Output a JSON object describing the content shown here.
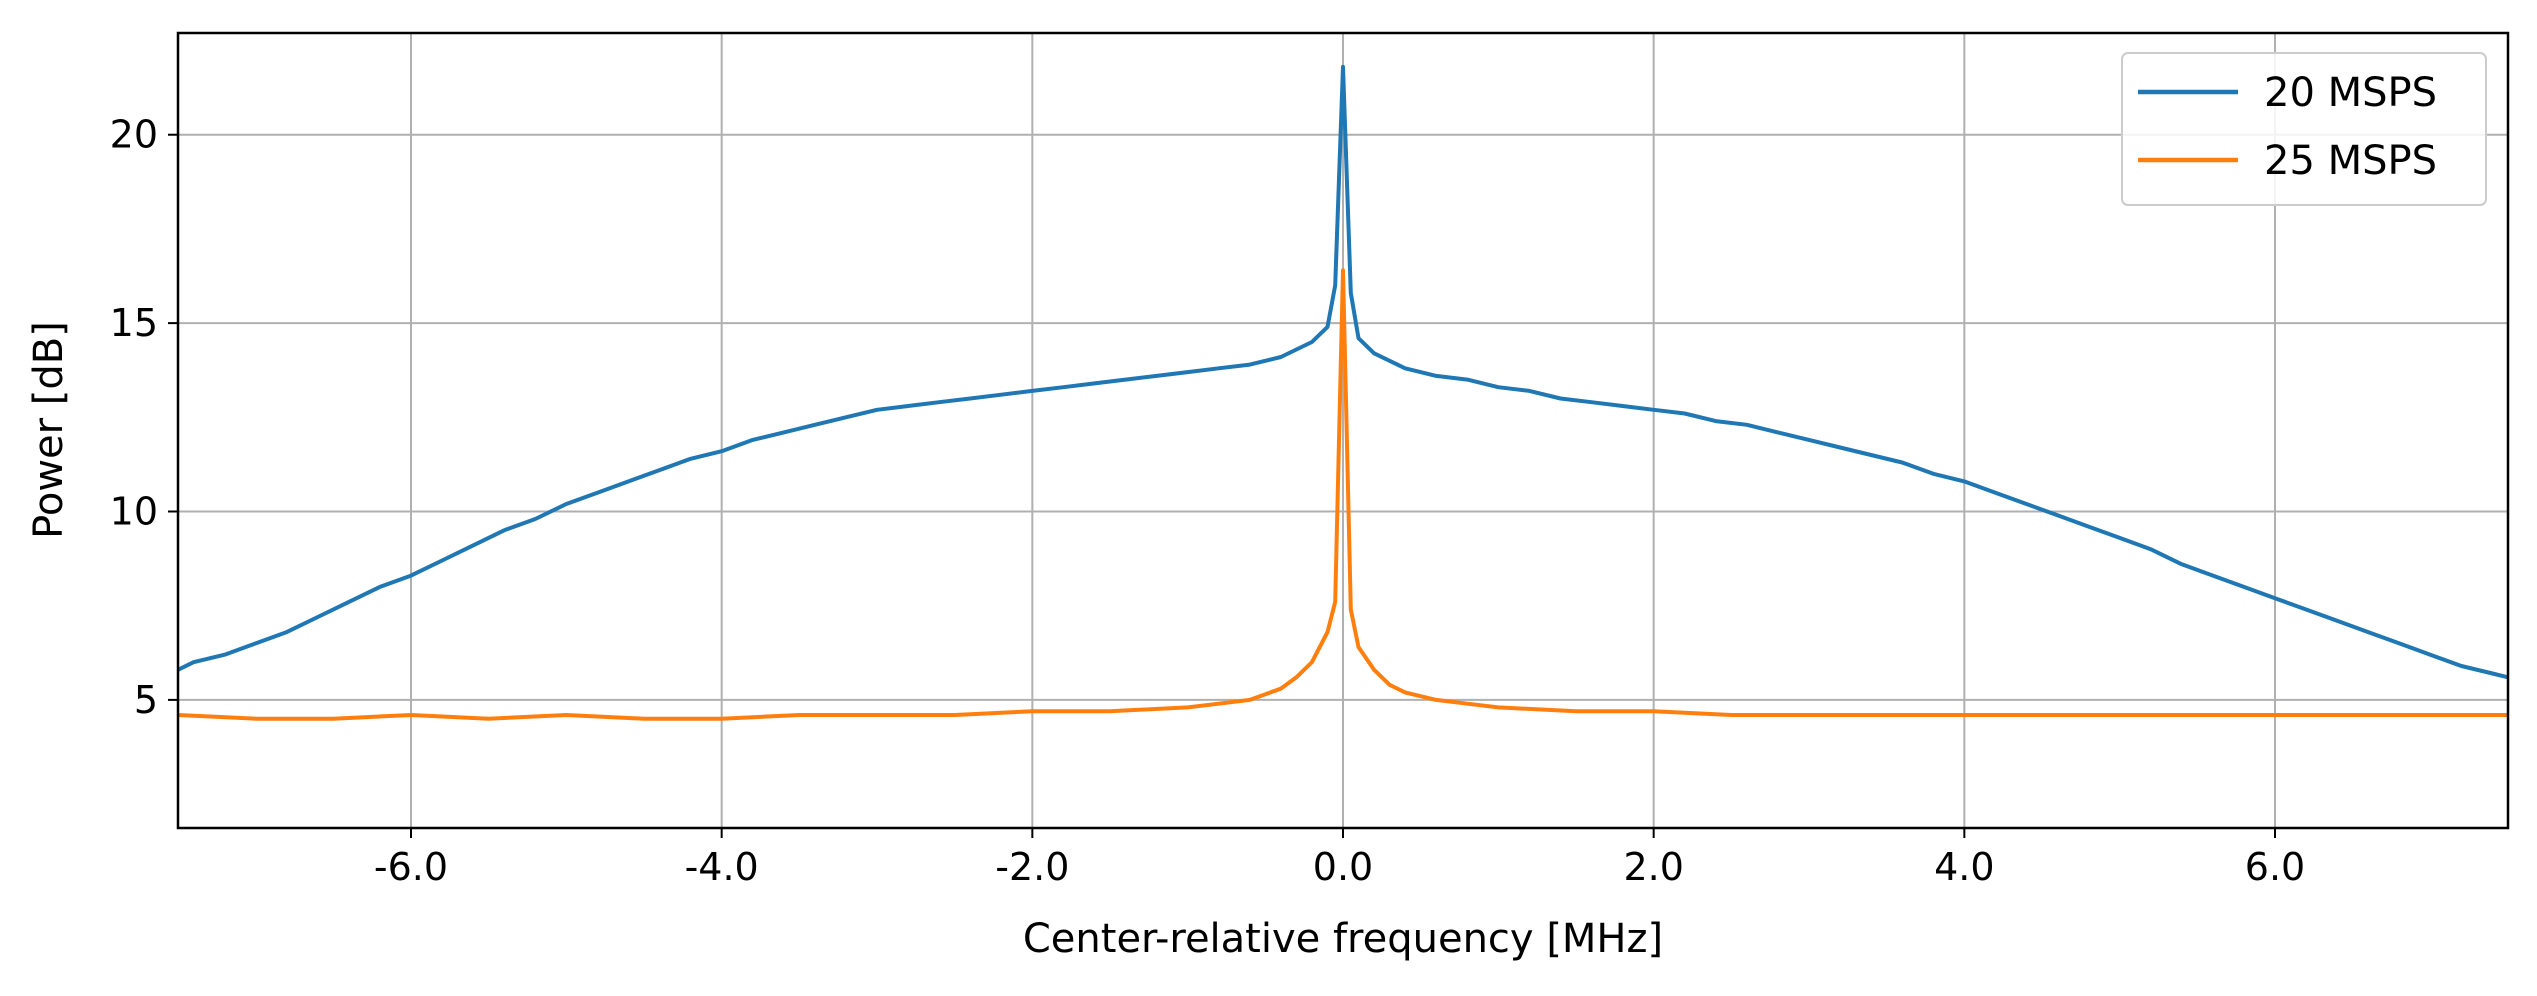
{
  "chart_data": {
    "type": "line",
    "title": "",
    "xlabel": "Center-relative frequency [MHz]",
    "ylabel": "Power [dB]",
    "xlim": [
      -7.5,
      7.5
    ],
    "ylim": [
      1.6,
      22.7
    ],
    "grid": true,
    "legend_position": "top-right",
    "x_ticks": [
      -6.0,
      -4.0,
      -2.0,
      0.0,
      2.0,
      4.0,
      6.0
    ],
    "x_tick_labels": [
      "-6.0",
      "-4.0",
      "-2.0",
      "0.0",
      "2.0",
      "4.0",
      "6.0"
    ],
    "y_ticks": [
      5,
      10,
      15,
      20
    ],
    "y_tick_labels": [
      "5",
      "10",
      "15",
      "20"
    ],
    "series": [
      {
        "name": "20 MSPS",
        "color": "#1f77b4",
        "x": [
          -7.5,
          -7.4,
          -7.2,
          -7.0,
          -6.8,
          -6.6,
          -6.4,
          -6.2,
          -6.0,
          -5.8,
          -5.6,
          -5.4,
          -5.2,
          -5.0,
          -4.8,
          -4.6,
          -4.4,
          -4.2,
          -4.0,
          -3.8,
          -3.6,
          -3.4,
          -3.2,
          -3.0,
          -2.8,
          -2.6,
          -2.4,
          -2.2,
          -2.0,
          -1.8,
          -1.6,
          -1.4,
          -1.2,
          -1.0,
          -0.8,
          -0.6,
          -0.4,
          -0.3,
          -0.2,
          -0.1,
          -0.05,
          0.0,
          0.05,
          0.1,
          0.2,
          0.3,
          0.4,
          0.6,
          0.8,
          1.0,
          1.2,
          1.4,
          1.6,
          1.8,
          2.0,
          2.2,
          2.4,
          2.6,
          2.8,
          3.0,
          3.2,
          3.4,
          3.6,
          3.8,
          4.0,
          4.2,
          4.4,
          4.6,
          4.8,
          5.0,
          5.2,
          5.4,
          5.6,
          5.8,
          6.0,
          6.2,
          6.4,
          6.6,
          6.8,
          7.0,
          7.2,
          7.4,
          7.5
        ],
        "y": [
          5.8,
          6.0,
          6.2,
          6.5,
          6.8,
          7.2,
          7.6,
          8.0,
          8.3,
          8.7,
          9.1,
          9.5,
          9.8,
          10.2,
          10.5,
          10.8,
          11.1,
          11.4,
          11.6,
          11.9,
          12.1,
          12.3,
          12.5,
          12.7,
          12.8,
          12.9,
          13.0,
          13.1,
          13.2,
          13.3,
          13.4,
          13.5,
          13.6,
          13.7,
          13.8,
          13.9,
          14.1,
          14.3,
          14.5,
          14.9,
          16.0,
          21.8,
          15.8,
          14.6,
          14.2,
          14.0,
          13.8,
          13.6,
          13.5,
          13.3,
          13.2,
          13.0,
          12.9,
          12.8,
          12.7,
          12.6,
          12.4,
          12.3,
          12.1,
          11.9,
          11.7,
          11.5,
          11.3,
          11.0,
          10.8,
          10.5,
          10.2,
          9.9,
          9.6,
          9.3,
          9.0,
          8.6,
          8.3,
          8.0,
          7.7,
          7.4,
          7.1,
          6.8,
          6.5,
          6.2,
          5.9,
          5.7,
          5.6
        ]
      },
      {
        "name": "25 MSPS",
        "color": "#ff7f0e",
        "x": [
          -7.5,
          -7.0,
          -6.5,
          -6.0,
          -5.5,
          -5.0,
          -4.5,
          -4.0,
          -3.5,
          -3.0,
          -2.5,
          -2.0,
          -1.5,
          -1.0,
          -0.8,
          -0.6,
          -0.4,
          -0.3,
          -0.2,
          -0.1,
          -0.05,
          0.0,
          0.05,
          0.1,
          0.2,
          0.3,
          0.4,
          0.6,
          0.8,
          1.0,
          1.5,
          2.0,
          2.5,
          3.0,
          3.5,
          4.0,
          4.5,
          5.0,
          5.5,
          6.0,
          6.5,
          7.0,
          7.5
        ],
        "y": [
          4.6,
          4.5,
          4.5,
          4.6,
          4.5,
          4.6,
          4.5,
          4.5,
          4.6,
          4.6,
          4.6,
          4.7,
          4.7,
          4.8,
          4.9,
          5.0,
          5.3,
          5.6,
          6.0,
          6.8,
          7.6,
          16.4,
          7.4,
          6.4,
          5.8,
          5.4,
          5.2,
          5.0,
          4.9,
          4.8,
          4.7,
          4.7,
          4.6,
          4.6,
          4.6,
          4.6,
          4.6,
          4.6,
          4.6,
          4.6,
          4.6,
          4.6,
          4.6
        ]
      }
    ]
  }
}
